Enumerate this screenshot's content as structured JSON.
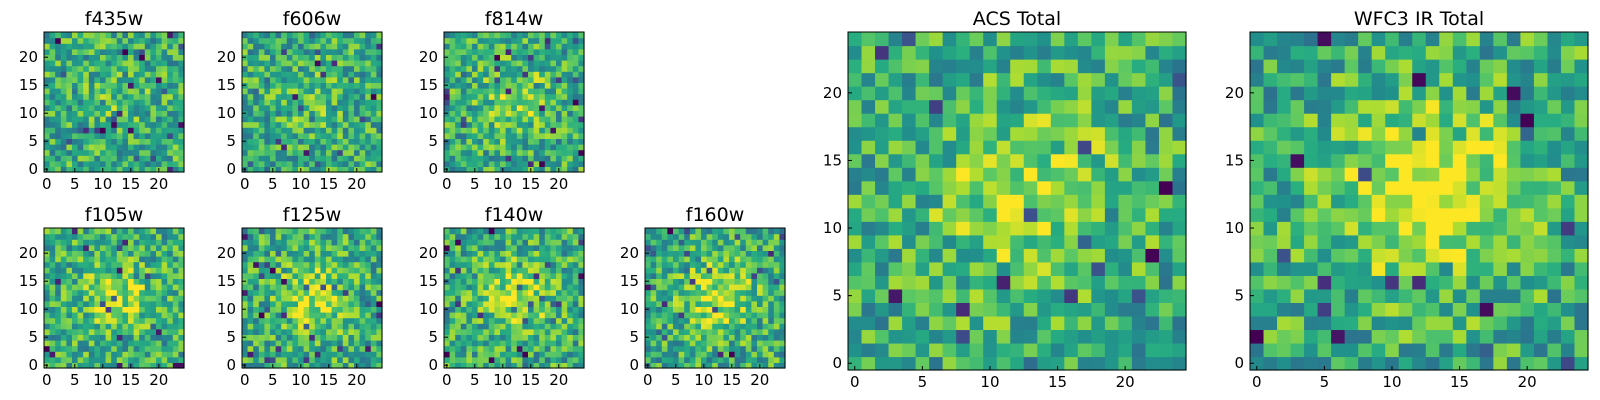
{
  "chart_data": [
    {
      "type": "heatmap",
      "title": "f435w",
      "xlim": [
        0,
        24
      ],
      "ylim": [
        0,
        24
      ],
      "xticks": [
        0,
        5,
        10,
        15,
        20
      ],
      "yticks": [
        0,
        5,
        10,
        15,
        20
      ],
      "grid": false,
      "colormap": "viridis",
      "blob": 0.1,
      "seed": 11
    },
    {
      "type": "heatmap",
      "title": "f606w",
      "xlim": [
        0,
        24
      ],
      "ylim": [
        0,
        24
      ],
      "xticks": [
        0,
        5,
        10,
        15,
        20
      ],
      "yticks": [
        0,
        5,
        10,
        15,
        20
      ],
      "grid": false,
      "colormap": "viridis",
      "blob": 0.1,
      "seed": 23
    },
    {
      "type": "heatmap",
      "title": "f814w",
      "xlim": [
        0,
        24
      ],
      "ylim": [
        0,
        24
      ],
      "xticks": [
        0,
        5,
        10,
        15,
        20
      ],
      "yticks": [
        0,
        5,
        10,
        15,
        20
      ],
      "grid": false,
      "colormap": "viridis",
      "blob": 0.2,
      "seed": 37
    },
    {
      "type": "heatmap",
      "title": "f105w",
      "xlim": [
        0,
        24
      ],
      "ylim": [
        0,
        24
      ],
      "xticks": [
        0,
        5,
        10,
        15,
        20
      ],
      "yticks": [
        0,
        5,
        10,
        15,
        20
      ],
      "grid": false,
      "colormap": "viridis",
      "blob": 0.25,
      "seed": 41
    },
    {
      "type": "heatmap",
      "title": "f125w",
      "xlim": [
        0,
        24
      ],
      "ylim": [
        0,
        24
      ],
      "xticks": [
        0,
        5,
        10,
        15,
        20
      ],
      "yticks": [
        0,
        5,
        10,
        15,
        20
      ],
      "grid": false,
      "colormap": "viridis",
      "blob": 0.3,
      "seed": 53
    },
    {
      "type": "heatmap",
      "title": "f140w",
      "xlim": [
        0,
        24
      ],
      "ylim": [
        0,
        24
      ],
      "xticks": [
        0,
        5,
        10,
        15,
        20
      ],
      "yticks": [
        0,
        5,
        10,
        15,
        20
      ],
      "grid": false,
      "colormap": "viridis",
      "blob": 0.3,
      "seed": 67
    },
    {
      "type": "heatmap",
      "title": "f160w",
      "xlim": [
        0,
        24
      ],
      "ylim": [
        0,
        24
      ],
      "xticks": [
        0,
        5,
        10,
        15,
        20
      ],
      "yticks": [
        0,
        5,
        10,
        15,
        20
      ],
      "grid": false,
      "colormap": "viridis",
      "blob": 0.3,
      "seed": 79
    },
    {
      "type": "heatmap",
      "title": "ACS Total",
      "xlim": [
        0,
        24
      ],
      "ylim": [
        0,
        24
      ],
      "xticks": [
        0,
        5,
        10,
        15,
        20
      ],
      "yticks": [
        0,
        5,
        10,
        15,
        20
      ],
      "grid": false,
      "colormap": "viridis",
      "blob": 0.3,
      "seed": 97
    },
    {
      "type": "heatmap",
      "title": "WFC3 IR Total",
      "xlim": [
        0,
        24
      ],
      "ylim": [
        0,
        24
      ],
      "xticks": [
        0,
        5,
        10,
        15,
        20
      ],
      "yticks": [
        0,
        5,
        10,
        15,
        20
      ],
      "grid": false,
      "colormap": "viridis",
      "blob": 0.45,
      "seed": 131
    }
  ]
}
